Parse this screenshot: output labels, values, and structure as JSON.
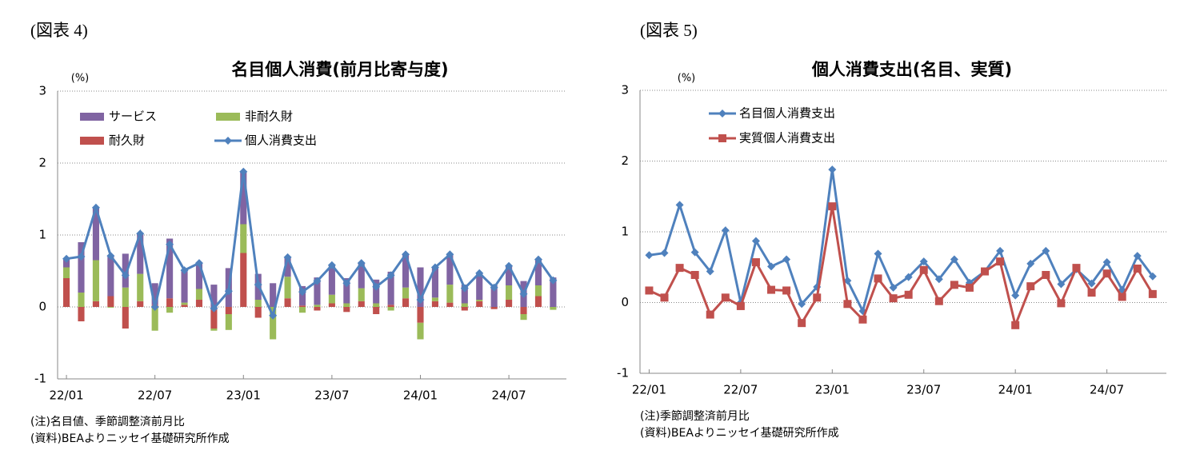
{
  "figures": [
    {
      "label": "(図表 4)",
      "notes": [
        "(注)名目値、季節調整済前月比",
        "(資料)BEAよりニッセイ基礎研究所作成"
      ]
    },
    {
      "label": "(図表 5)",
      "notes": [
        "(注)季節調整済前月比",
        "(資料)BEAよりニッセイ基礎研究所作成"
      ]
    }
  ],
  "chart_data": [
    {
      "type": "combo",
      "title": "名目個人消費(前月比寄与度)",
      "y_unit": "(%)",
      "ylim": [
        -1,
        3
      ],
      "yticks": [
        -1,
        0,
        1,
        2,
        3
      ],
      "grid": true,
      "categories": [
        "22/01",
        null,
        null,
        null,
        null,
        null,
        "22/07",
        null,
        null,
        null,
        null,
        null,
        "23/01",
        null,
        null,
        null,
        null,
        null,
        "23/07",
        null,
        null,
        null,
        null,
        null,
        "24/01",
        null,
        null,
        null,
        null,
        null,
        "24/07",
        null,
        null,
        null
      ],
      "series": [
        {
          "name": "サービス",
          "kind": "bar",
          "color": "#8064a2",
          "values": [
            0.12,
            0.7,
            0.73,
            0.57,
            0.47,
            0.56,
            0.3,
            0.83,
            0.45,
            0.36,
            0.31,
            0.54,
            0.73,
            0.36,
            0.33,
            0.27,
            0.27,
            0.38,
            0.41,
            0.35,
            0.35,
            0.33,
            0.46,
            0.46,
            0.55,
            0.42,
            0.42,
            0.26,
            0.37,
            0.3,
            0.27,
            0.36,
            0.36,
            0.41
          ]
        },
        {
          "name": "非耐久財",
          "kind": "bar",
          "color": "#9bbb59",
          "values": [
            0.15,
            0.2,
            0.57,
            -0.01,
            0.27,
            0.38,
            -0.33,
            -0.08,
            0.03,
            0.15,
            -0.03,
            -0.22,
            0.4,
            0.1,
            -0.45,
            0.3,
            -0.08,
            0.03,
            0.12,
            0.05,
            0.18,
            0.05,
            -0.05,
            0.15,
            -0.23,
            0.05,
            0.25,
            0.05,
            0.02,
            0,
            0.2,
            -0.08,
            0.15,
            -0.04
          ]
        },
        {
          "name": "耐久財",
          "kind": "bar",
          "color": "#c0504d",
          "values": [
            0.4,
            -0.2,
            0.08,
            0.15,
            -0.3,
            0.08,
            0.03,
            0.12,
            0.03,
            0.1,
            -0.3,
            -0.1,
            0.75,
            -0.15,
            0,
            0.12,
            0.02,
            -0.05,
            0.05,
            -0.07,
            0.08,
            -0.1,
            0.03,
            0.12,
            -0.22,
            0.08,
            0.06,
            -0.05,
            0.08,
            -0.03,
            0.1,
            -0.1,
            0.15,
            0
          ]
        },
        {
          "name": "個人消費支出",
          "kind": "line",
          "color": "#4f81bd",
          "values": [
            0.67,
            0.7,
            1.38,
            0.71,
            0.44,
            1.02,
            0.0,
            0.87,
            0.51,
            0.61,
            -0.02,
            0.22,
            1.88,
            0.31,
            -0.12,
            0.69,
            0.21,
            0.36,
            0.58,
            0.33,
            0.61,
            0.28,
            0.44,
            0.73,
            0.1,
            0.55,
            0.73,
            0.26,
            0.47,
            0.27,
            0.57,
            0.18,
            0.66,
            0.37
          ]
        }
      ]
    },
    {
      "type": "line",
      "title": "個人消費支出(名目、実質)",
      "y_unit": "(%)",
      "ylim": [
        -1,
        3
      ],
      "yticks": [
        -1,
        0,
        1,
        2,
        3
      ],
      "grid": true,
      "categories": [
        "22/01",
        null,
        null,
        null,
        null,
        null,
        "22/07",
        null,
        null,
        null,
        null,
        null,
        "23/01",
        null,
        null,
        null,
        null,
        null,
        "23/07",
        null,
        null,
        null,
        null,
        null,
        "24/01",
        null,
        null,
        null,
        null,
        null,
        "24/07",
        null,
        null,
        null
      ],
      "series": [
        {
          "name": "名目個人消費支出",
          "marker": "diamond",
          "color": "#4f81bd",
          "values": [
            0.67,
            0.7,
            1.38,
            0.71,
            0.44,
            1.02,
            0.0,
            0.87,
            0.51,
            0.61,
            -0.02,
            0.22,
            1.88,
            0.31,
            -0.12,
            0.69,
            0.21,
            0.36,
            0.58,
            0.33,
            0.61,
            0.28,
            0.44,
            0.73,
            0.1,
            0.55,
            0.73,
            0.26,
            0.47,
            0.27,
            0.57,
            0.18,
            0.66,
            0.37
          ]
        },
        {
          "name": "実質個人消費支出",
          "marker": "square",
          "color": "#c0504d",
          "values": [
            0.17,
            0.07,
            0.49,
            0.39,
            -0.17,
            0.07,
            -0.05,
            0.57,
            0.18,
            0.17,
            -0.29,
            0.07,
            1.36,
            -0.02,
            -0.24,
            0.34,
            0.06,
            0.11,
            0.46,
            0.02,
            0.25,
            0.21,
            0.44,
            0.58,
            -0.32,
            0.23,
            0.39,
            -0.01,
            0.49,
            0.14,
            0.41,
            0.08,
            0.48,
            0.12
          ]
        }
      ]
    }
  ]
}
